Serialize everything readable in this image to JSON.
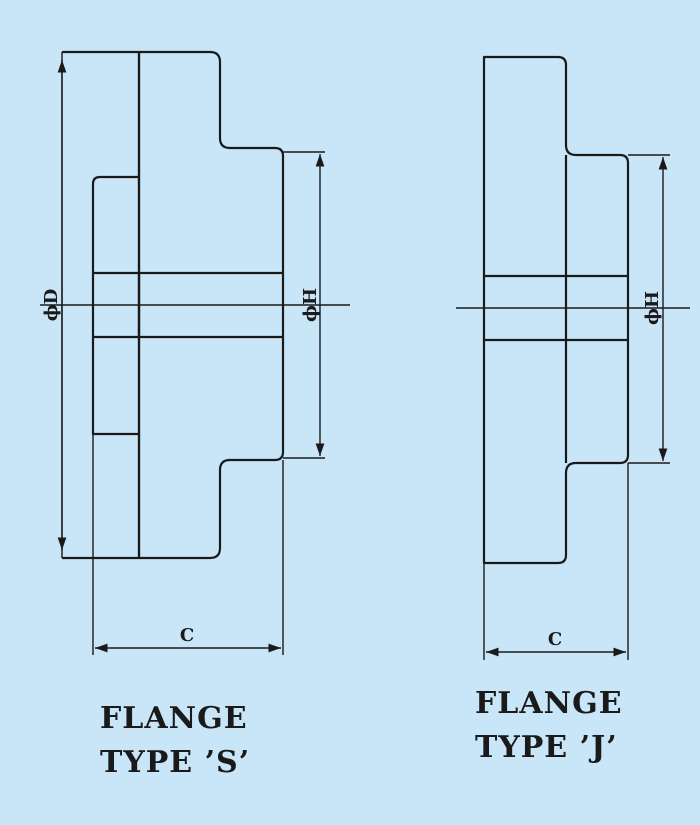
{
  "diagram": {
    "left_figure": {
      "dimension_labels": {
        "outer_diameter": "ϕD",
        "hub_diameter": "ϕH",
        "length": "C"
      },
      "caption": {
        "line1": "FLANGE",
        "line2": "TYPE ’S’"
      }
    },
    "right_figure": {
      "dimension_labels": {
        "hub_diameter": "ϕH",
        "length": "C"
      },
      "caption": {
        "line1": "FLANGE",
        "line2": "TYPE ’J’"
      }
    }
  }
}
